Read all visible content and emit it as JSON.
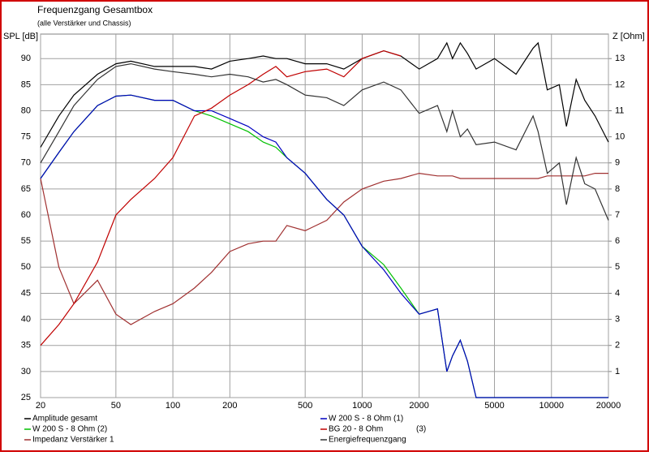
{
  "chart_data": {
    "type": "line",
    "title": "Frequenzgang Gesamtbox",
    "subtitle": "(alle Verstärker und Chassis)",
    "ylabel": "SPL [dB]",
    "y2label": "Z [Ohm]",
    "xscale": "log",
    "grid": true,
    "xlim": [
      20,
      20000
    ],
    "xticks": [
      20,
      50,
      100,
      200,
      500,
      1000,
      2000,
      5000,
      10000,
      20000
    ],
    "ylim": [
      25,
      94.7
    ],
    "yticks": [
      25,
      30,
      35,
      40,
      45,
      50,
      55,
      60,
      65,
      70,
      75,
      80,
      85,
      90
    ],
    "y2lim": [
      0,
      13.94
    ],
    "y2ticks": [
      1,
      2,
      3,
      4,
      5,
      6,
      7,
      8,
      9,
      10,
      11,
      12,
      13
    ],
    "x": [
      20,
      25,
      30,
      40,
      50,
      60,
      80,
      100,
      130,
      160,
      200,
      250,
      300,
      350,
      400,
      500,
      650,
      800,
      1000,
      1300,
      1600,
      2000,
      2500,
      2800,
      3000,
      3300,
      3600,
      4000,
      5000,
      6500,
      8000,
      8500,
      9500,
      11000,
      12000,
      13500,
      15000,
      17000,
      20000
    ],
    "series": [
      {
        "name": "Amplitude gesamt",
        "color": "#000000",
        "values": [
          73,
          79,
          83,
          87,
          89,
          89.5,
          88.5,
          88.5,
          88.5,
          88,
          89.5,
          90,
          90.5,
          90,
          90,
          89,
          89,
          88,
          90,
          91.5,
          90.5,
          88,
          90,
          93,
          90,
          93,
          91,
          88,
          90,
          87,
          92,
          93,
          84,
          85,
          77,
          86,
          82,
          79,
          74
        ]
      },
      {
        "name": "W 200 S - 8 Ohm (2)",
        "color": "#00c000",
        "values": [
          67,
          72,
          76,
          81,
          82.8,
          83,
          82,
          82,
          80,
          79,
          77.5,
          76,
          74,
          73,
          71,
          68,
          63,
          60,
          54,
          50.5,
          46,
          41,
          42,
          30,
          33,
          36,
          32,
          25,
          25,
          25,
          25,
          25,
          25,
          25,
          25,
          25,
          25,
          25,
          25
        ]
      },
      {
        "name": "Impedanz Verstärker 1",
        "color": "#a03030",
        "axis": "y2",
        "values": [
          8.4,
          5,
          3.6,
          4.5,
          3.2,
          2.8,
          3.3,
          3.6,
          4.2,
          4.8,
          5.6,
          5.9,
          6,
          6,
          6.6,
          6.4,
          6.8,
          7.5,
          8,
          8.3,
          8.4,
          8.6,
          8.5,
          8.5,
          8.5,
          8.4,
          8.4,
          8.4,
          8.4,
          8.4,
          8.4,
          8.4,
          8.5,
          8.5,
          8.5,
          8.5,
          8.5,
          8.6,
          8.6
        ]
      },
      {
        "name": "W 200 S - 8 Ohm (1)",
        "color": "#0000c0",
        "values": [
          67,
          72,
          76,
          81,
          82.8,
          83,
          82,
          82,
          80,
          80,
          78.5,
          77,
          75,
          74,
          71,
          68,
          63,
          60,
          54,
          49.5,
          45,
          41,
          42,
          30,
          33,
          36,
          32,
          25,
          25,
          25,
          25,
          25,
          25,
          25,
          25,
          25,
          25,
          25,
          25
        ]
      },
      {
        "name": "BG 20 - 8 Ohm",
        "label_suffix": "(3)",
        "color": "#c00000",
        "values": [
          35,
          39,
          43,
          51,
          60,
          63,
          67,
          71,
          79,
          80.5,
          83,
          85,
          87,
          88.5,
          86.5,
          87.5,
          88,
          86.5,
          90,
          91.5,
          90.5,
          null,
          null,
          null,
          null,
          null,
          null,
          null,
          null,
          null,
          null,
          null,
          null,
          null,
          null,
          null,
          null,
          null,
          null
        ]
      },
      {
        "name": "Energiefrequenzgang",
        "color": "#333333",
        "values": [
          70,
          76,
          81,
          86,
          88.5,
          89,
          88,
          87.5,
          87,
          86.5,
          87,
          86.5,
          85.5,
          86,
          85,
          83,
          82.5,
          81,
          84,
          85.5,
          84,
          79.5,
          81,
          76,
          80,
          75,
          76.5,
          73.5,
          74,
          72.5,
          79,
          76,
          68,
          70,
          62,
          71,
          66,
          65,
          59
        ]
      }
    ]
  }
}
